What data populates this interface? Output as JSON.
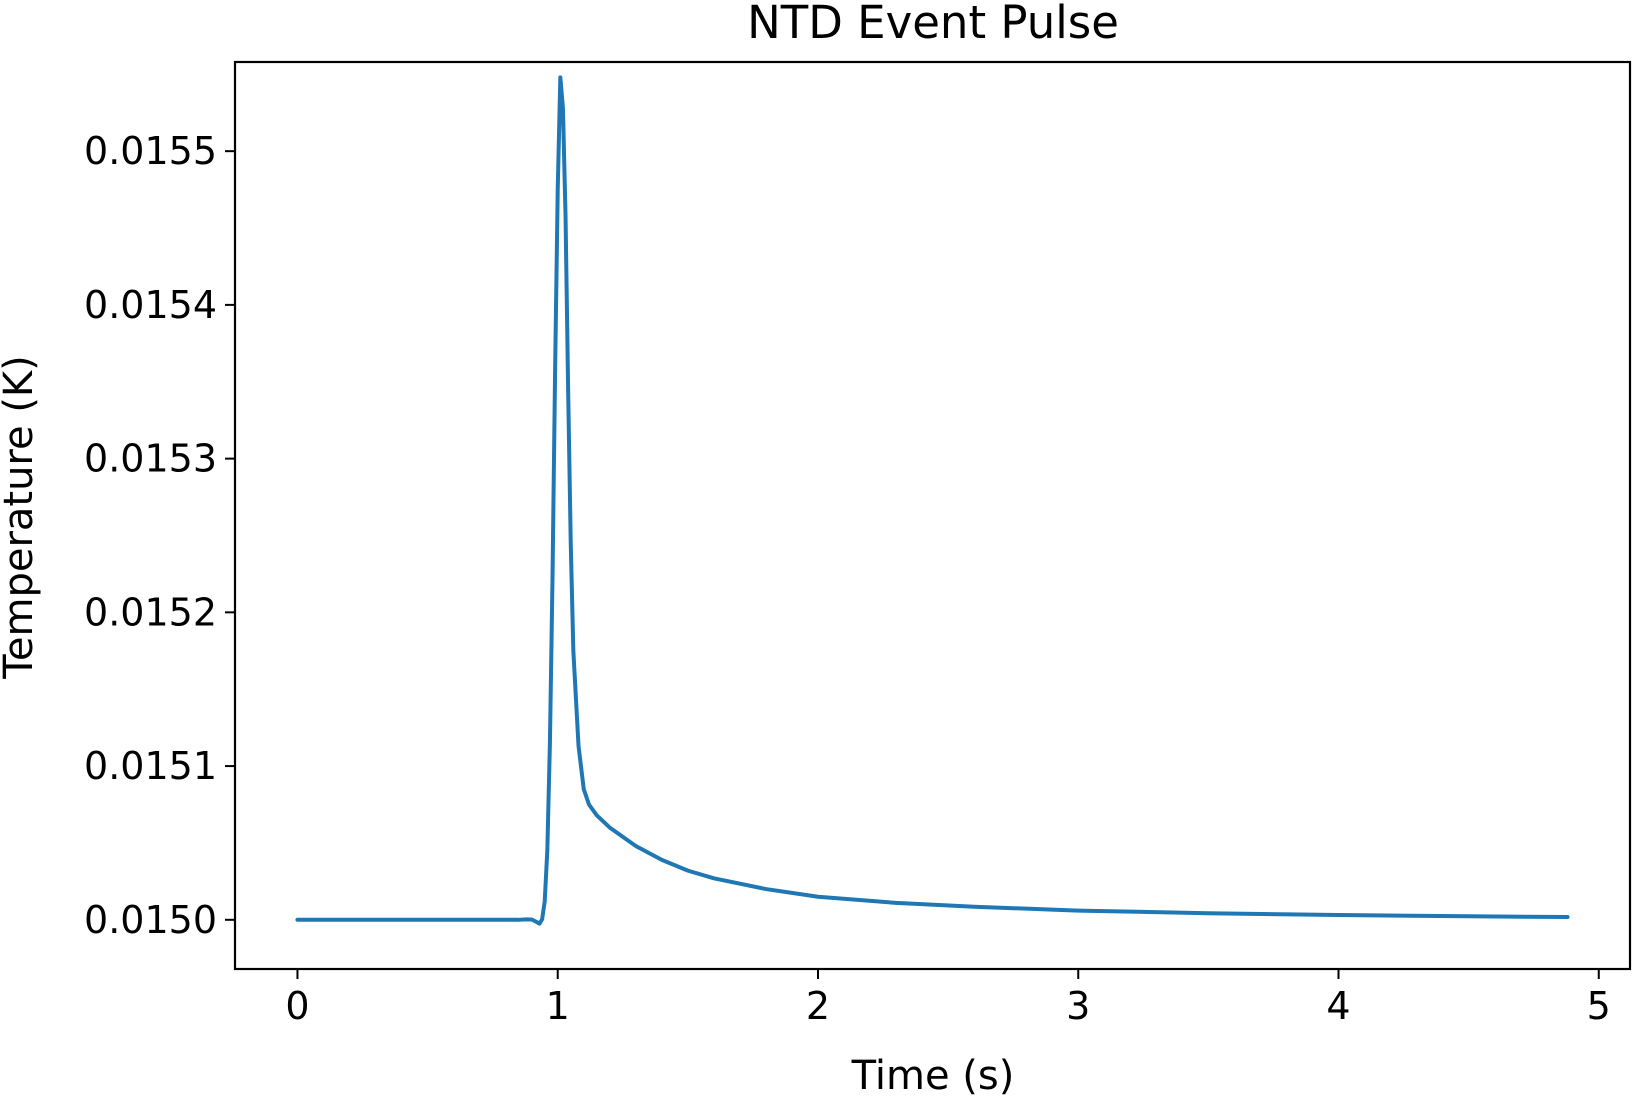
{
  "chart_data": {
    "type": "line",
    "title": "NTD Event Pulse",
    "xlabel": "Time (s)",
    "ylabel": "Temperature (K)",
    "xlim": [
      -0.24,
      5.12
    ],
    "ylim": [
      0.014968,
      0.015558
    ],
    "xticks": [
      0,
      1,
      2,
      3,
      4,
      5
    ],
    "xtick_labels": [
      "0",
      "1",
      "2",
      "3",
      "4",
      "5"
    ],
    "yticks": [
      0.015,
      0.0151,
      0.0152,
      0.0153,
      0.0154,
      0.0155
    ],
    "ytick_labels": [
      "0.0150",
      "0.0151",
      "0.0152",
      "0.0153",
      "0.0154",
      "0.0155"
    ],
    "grid": false,
    "legend": "none",
    "line_color": "#1f77b4",
    "series": [
      {
        "x": [
          0,
          0.2,
          0.4,
          0.6,
          0.8,
          0.85,
          0.88,
          0.9,
          0.92,
          0.93,
          0.94,
          0.95,
          0.96,
          0.97,
          0.98,
          0.99,
          1.0,
          1.01,
          1.02,
          1.03,
          1.04,
          1.05,
          1.06,
          1.08,
          1.1,
          1.12,
          1.15,
          1.2,
          1.3,
          1.4,
          1.5,
          1.6,
          1.8,
          2.0,
          2.3,
          2.6,
          3.0,
          3.5,
          4.0,
          4.5,
          4.88
        ],
        "y": [
          0.015,
          0.015,
          0.015,
          0.015,
          0.015,
          0.015,
          0.0150003,
          0.0150002,
          0.0149985,
          0.0149975,
          0.0150003,
          0.015012,
          0.015045,
          0.015115,
          0.015223,
          0.015358,
          0.015475,
          0.015548,
          0.015528,
          0.015458,
          0.015345,
          0.015245,
          0.015175,
          0.015113,
          0.015085,
          0.015075,
          0.015068,
          0.01506,
          0.015048,
          0.015039,
          0.015032,
          0.015027,
          0.01502,
          0.015015,
          0.015011,
          0.0150085,
          0.015006,
          0.0150043,
          0.0150031,
          0.0150023,
          0.0150018
        ]
      }
    ]
  }
}
